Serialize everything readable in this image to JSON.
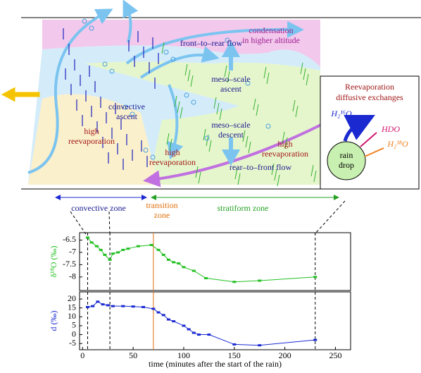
{
  "diagram": {
    "front_to_rear": "front–to–rear flow",
    "condensation": [
      "condensation",
      "in higher altitude"
    ],
    "meso_ascent": [
      "meso–scale",
      "ascent"
    ],
    "convective_ascent": [
      "convective",
      "ascent"
    ],
    "meso_descent": [
      "meso–scale",
      "descent"
    ],
    "reevaporation_1": [
      "high",
      "reevaporation"
    ],
    "reevaporation_2": [
      "high",
      "reevaporation"
    ],
    "reevaporation_3": [
      "high",
      "reevaporation"
    ],
    "rear_to_front": "rear–to–front flow",
    "inset_title": [
      "Reevaporation",
      "diffusive exchanges"
    ],
    "h2o16": "H₂¹⁶O",
    "hdo": "HDO",
    "h2o18": "H₂¹⁸O",
    "drop": [
      "rain",
      "drop"
    ],
    "convective_zone": "convective zone",
    "transition_zone": [
      "transition",
      "zone"
    ],
    "stratiform_zone": "stratiform zone"
  },
  "chart_data": [
    {
      "type": "line",
      "y_label": "δ¹⁸O (‰)",
      "color": "#22c022",
      "x": [
        5,
        9,
        14,
        18,
        22,
        27,
        30,
        35,
        40,
        45,
        55,
        68,
        75,
        80,
        85,
        90,
        95,
        100,
        110,
        122,
        150,
        175,
        230
      ],
      "values": [
        -6.4,
        -6.6,
        -6.75,
        -6.9,
        -7.1,
        -7.3,
        -7.05,
        -7.0,
        -6.9,
        -6.85,
        -6.75,
        -6.7,
        -6.9,
        -7.1,
        -7.3,
        -7.4,
        -7.45,
        -7.6,
        -7.75,
        -8.05,
        -8.2,
        -8.15,
        -8.0
      ],
      "xlim": [
        -3,
        265
      ],
      "ylim": [
        -8.55,
        -6.2
      ],
      "yticks": [
        -6.5,
        -7,
        -7.5,
        -8
      ]
    },
    {
      "type": "line",
      "y_label": "d (‰)",
      "x_label": "time (minutes after the start of the rain)",
      "color": "#1a2ad0",
      "x": [
        5,
        10,
        15,
        20,
        25,
        30,
        40,
        50,
        60,
        70,
        75,
        80,
        85,
        90,
        100,
        105,
        110,
        115,
        125,
        150,
        175,
        230
      ],
      "values": [
        15.5,
        16,
        18.5,
        17,
        16.5,
        16,
        16,
        15.8,
        15.5,
        14.5,
        12.5,
        11,
        8.5,
        7.5,
        5,
        3,
        1,
        0,
        0,
        -5.5,
        -6,
        -3
      ],
      "xlim": [
        -3,
        265
      ],
      "ylim": [
        -8.5,
        24
      ],
      "yticks": [
        20,
        15,
        10,
        5,
        0,
        -5
      ],
      "xticks": [
        0,
        50,
        100,
        150,
        200,
        250
      ]
    }
  ]
}
